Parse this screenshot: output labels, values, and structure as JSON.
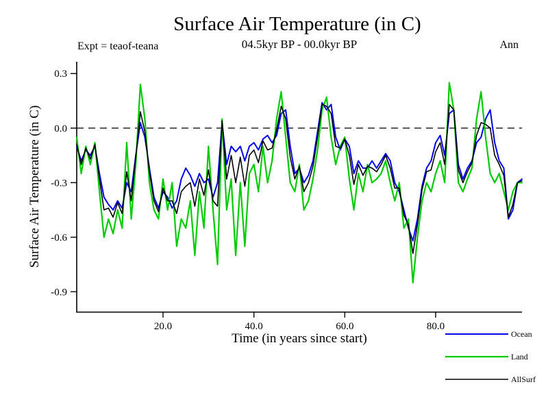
{
  "page": {
    "title": "Surface Air Temperature (in C)",
    "subtitle": "04.5kyr BP - 00.0kyr BP",
    "expt_label": "Expt = teaof-teana",
    "season_label": "Ann"
  },
  "chart_data": {
    "type": "line",
    "title": "Surface Air Temperature (in C)",
    "subtitle": "04.5kyr BP - 00.0kyr BP",
    "xlabel": "Time (in years since start)",
    "ylabel": "Surface Air Temperature (in C)",
    "x_start": 1,
    "x_step": 1,
    "xlim": [
      1,
      99
    ],
    "ylim": [
      -1.0,
      0.36
    ],
    "x_ticks": [
      20.0,
      40.0,
      60.0,
      80.0
    ],
    "x_tick_labels": [
      "20.0",
      "40.0",
      "60.0",
      "80.0"
    ],
    "y_ticks": [
      0.3,
      0.0,
      -0.3,
      -0.6,
      -0.9
    ],
    "y_tick_labels": [
      "0.3",
      "0.0",
      "-0.3",
      "-0.6",
      "-0.9"
    ],
    "zero_line": {
      "value": 0.0,
      "style": "dashed",
      "color": "#000000"
    },
    "grid": false,
    "legend_position": "bottom-right",
    "series": [
      {
        "name": "Ocean",
        "color": "#0000ee",
        "values": [
          -0.1,
          -0.18,
          -0.12,
          -0.15,
          -0.1,
          -0.25,
          -0.38,
          -0.42,
          -0.45,
          -0.4,
          -0.44,
          -0.3,
          -0.35,
          -0.15,
          0.03,
          -0.05,
          -0.22,
          -0.38,
          -0.44,
          -0.35,
          -0.38,
          -0.44,
          -0.4,
          -0.28,
          -0.22,
          -0.26,
          -0.32,
          -0.25,
          -0.3,
          -0.28,
          -0.38,
          -0.3,
          0.03,
          -0.2,
          -0.1,
          -0.13,
          -0.1,
          -0.18,
          -0.1,
          -0.08,
          -0.12,
          -0.06,
          -0.04,
          -0.08,
          -0.04,
          0.08,
          0.1,
          -0.1,
          -0.25,
          -0.22,
          -0.3,
          -0.26,
          -0.18,
          -0.02,
          0.14,
          0.1,
          0.13,
          -0.05,
          -0.12,
          -0.06,
          -0.1,
          -0.25,
          -0.18,
          -0.22,
          -0.22,
          -0.18,
          -0.22,
          -0.18,
          -0.14,
          -0.18,
          -0.3,
          -0.35,
          -0.45,
          -0.55,
          -0.62,
          -0.5,
          -0.32,
          -0.22,
          -0.18,
          -0.08,
          -0.04,
          -0.15,
          0.08,
          0.1,
          -0.2,
          -0.28,
          -0.22,
          -0.18,
          -0.08,
          -0.05,
          0.05,
          0.1,
          -0.08,
          -0.18,
          -0.22,
          -0.5,
          -0.45,
          -0.3,
          -0.28
        ]
      },
      {
        "name": "Land",
        "color": "#00cc00",
        "values": [
          -0.05,
          -0.25,
          -0.1,
          -0.2,
          -0.08,
          -0.35,
          -0.6,
          -0.5,
          -0.58,
          -0.45,
          -0.55,
          -0.08,
          -0.5,
          -0.2,
          0.24,
          0.05,
          -0.3,
          -0.45,
          -0.5,
          -0.28,
          -0.45,
          -0.3,
          -0.65,
          -0.5,
          -0.55,
          -0.4,
          -0.7,
          -0.35,
          -0.55,
          -0.1,
          -0.45,
          -0.75,
          0.05,
          -0.45,
          -0.28,
          -0.7,
          -0.3,
          -0.65,
          -0.25,
          -0.2,
          -0.35,
          -0.1,
          -0.3,
          -0.18,
          0.05,
          0.2,
          -0.05,
          -0.3,
          -0.35,
          -0.2,
          -0.45,
          -0.4,
          -0.28,
          -0.12,
          0.1,
          0.17,
          -0.05,
          -0.2,
          -0.1,
          -0.05,
          -0.28,
          -0.45,
          -0.25,
          -0.35,
          -0.2,
          -0.3,
          -0.28,
          -0.25,
          -0.18,
          -0.3,
          -0.4,
          -0.3,
          -0.55,
          -0.5,
          -0.85,
          -0.6,
          -0.4,
          -0.3,
          -0.35,
          -0.25,
          -0.18,
          -0.3,
          0.25,
          0.1,
          -0.3,
          -0.35,
          -0.28,
          -0.22,
          0.05,
          0.2,
          -0.05,
          -0.25,
          -0.3,
          -0.25,
          -0.35,
          -0.45,
          -0.35,
          -0.3,
          -0.3
        ]
      },
      {
        "name": "AllSurf",
        "color": "#000000",
        "values": [
          -0.09,
          -0.2,
          -0.11,
          -0.17,
          -0.09,
          -0.28,
          -0.45,
          -0.44,
          -0.49,
          -0.41,
          -0.47,
          -0.24,
          -0.4,
          -0.16,
          0.09,
          -0.02,
          -0.24,
          -0.4,
          -0.46,
          -0.33,
          -0.4,
          -0.4,
          -0.47,
          -0.35,
          -0.32,
          -0.3,
          -0.43,
          -0.28,
          -0.37,
          -0.23,
          -0.4,
          -0.43,
          0.04,
          -0.28,
          -0.15,
          -0.3,
          -0.16,
          -0.32,
          -0.15,
          -0.12,
          -0.19,
          -0.07,
          -0.12,
          -0.11,
          -0.01,
          0.12,
          0.05,
          -0.16,
          -0.28,
          -0.21,
          -0.35,
          -0.3,
          -0.21,
          -0.05,
          0.13,
          0.12,
          0.08,
          -0.1,
          -0.11,
          -0.06,
          -0.15,
          -0.31,
          -0.2,
          -0.26,
          -0.21,
          -0.22,
          -0.24,
          -0.2,
          -0.15,
          -0.22,
          -0.33,
          -0.33,
          -0.48,
          -0.53,
          -0.69,
          -0.53,
          -0.34,
          -0.24,
          -0.23,
          -0.13,
          -0.08,
          -0.2,
          0.13,
          0.1,
          -0.23,
          -0.3,
          -0.24,
          -0.19,
          -0.04,
          0.03,
          0.02,
          0.0,
          -0.15,
          -0.2,
          -0.26,
          -0.49,
          -0.42,
          -0.3,
          -0.29
        ]
      }
    ]
  }
}
